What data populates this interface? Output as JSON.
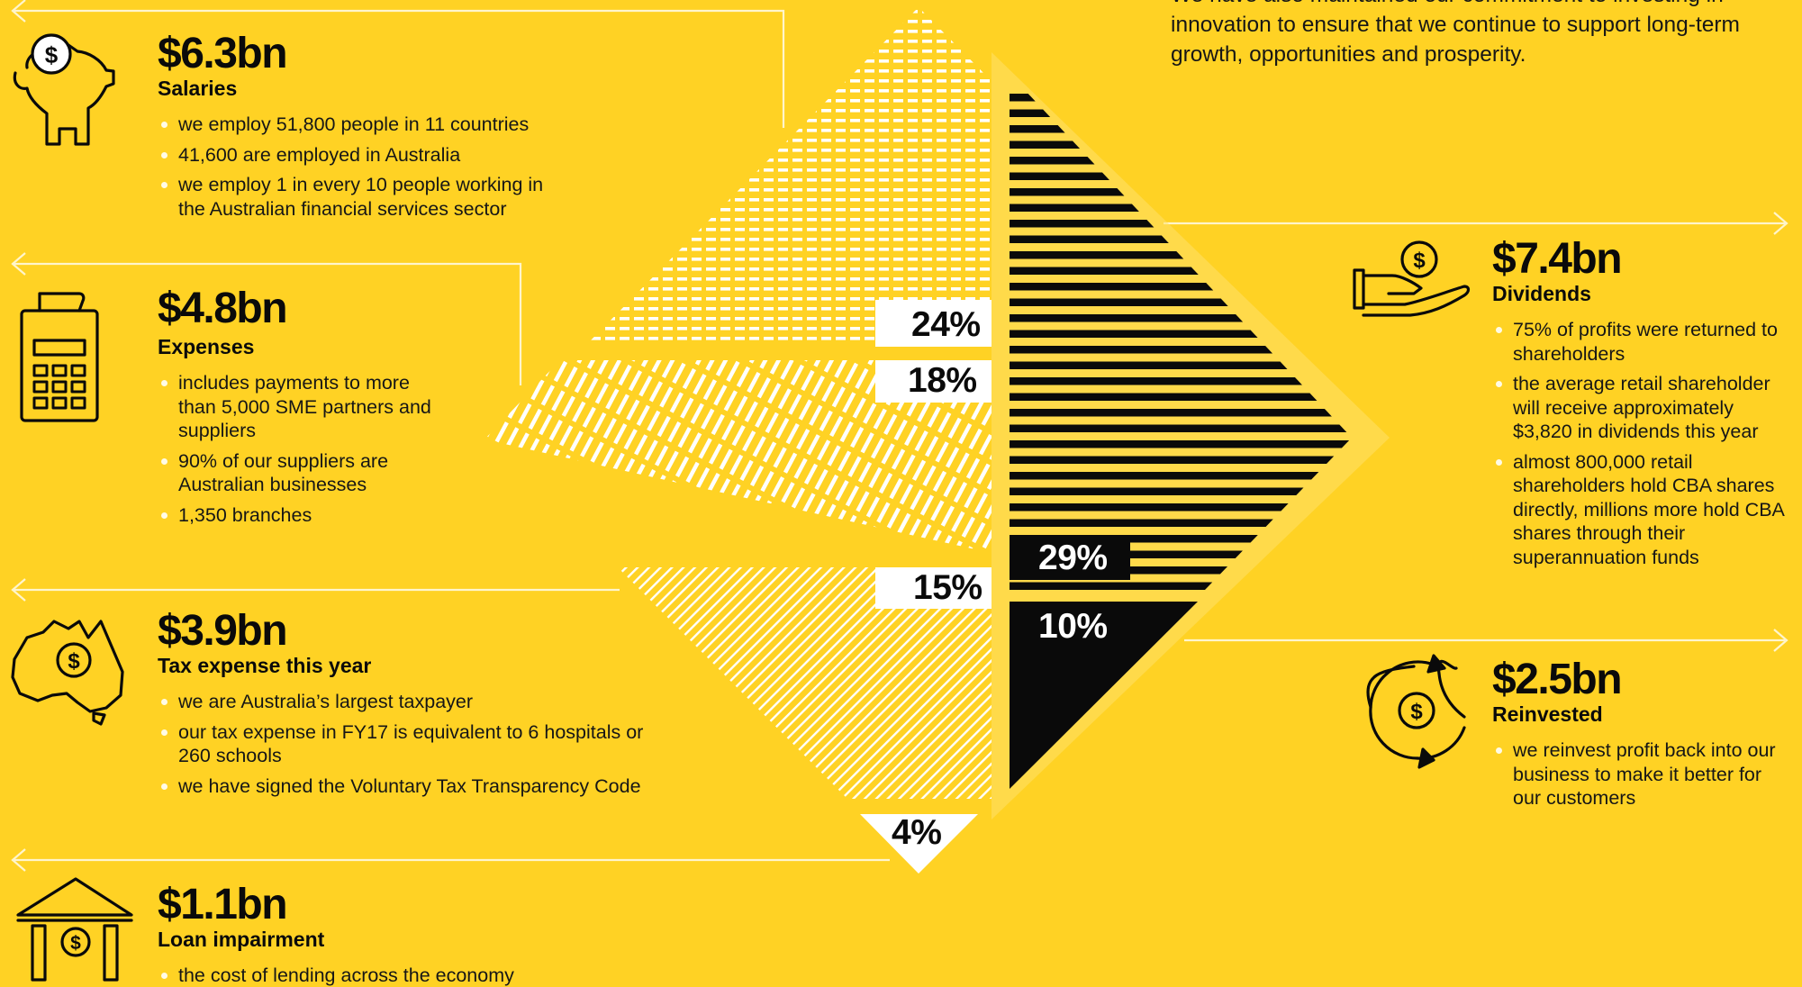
{
  "intro": "We have also maintained our commitment to investing in innovation to ensure that we continue to support long-term growth, opportunities and prosperity.",
  "colors": {
    "background": "#FFD224",
    "ink": "#0a0a0a",
    "white": "#ffffff"
  },
  "segments": [
    {
      "amount": "$6.3bn",
      "label": "Salaries",
      "percent": "24%",
      "icon": "piggy-bank-icon",
      "bullets": [
        "we employ 51,800 people in 11 countries",
        "41,600 are employed in Australia",
        "we employ 1 in every 10 people working in the Australian financial services sector"
      ]
    },
    {
      "amount": "$4.8bn",
      "label": "Expenses",
      "percent": "18%",
      "icon": "calculator-icon",
      "bullets": [
        "includes payments to more than 5,000 SME partners and suppliers",
        "90% of our suppliers are Australian businesses",
        "1,350 branches"
      ]
    },
    {
      "amount": "$3.9bn",
      "label": "Tax expense this year",
      "percent": "15%",
      "icon": "australia-map-icon",
      "bullets": [
        "we are Australia’s largest taxpayer",
        "our tax expense in FY17 is equivalent to 6 hospitals or 260 schools",
        "we have signed the Voluntary Tax Transparency Code"
      ]
    },
    {
      "amount": "$1.1bn",
      "label": "Loan impairment",
      "percent": "4%",
      "icon": "bank-building-icon",
      "bullets": [
        "the cost of lending across the economy"
      ]
    },
    {
      "amount": "$7.4bn",
      "label": "Dividends",
      "percent": "29%",
      "icon": "hand-coin-icon",
      "bullets": [
        "75% of profits were returned to shareholders",
        "the average retail shareholder will receive approximately $3,820 in dividends this year",
        "almost 800,000 retail shareholders hold CBA shares directly, millions more hold CBA shares through their superannuation funds"
      ]
    },
    {
      "amount": "$2.5bn",
      "label": "Reinvested",
      "percent": "10%",
      "icon": "recycle-coin-icon",
      "bullets": [
        "we reinvest profit back into our business to make it better for our customers"
      ]
    }
  ]
}
